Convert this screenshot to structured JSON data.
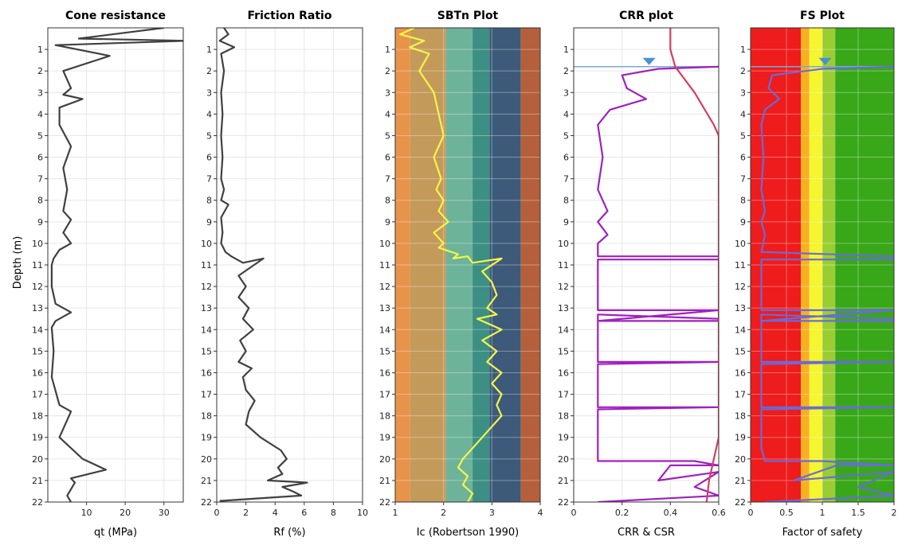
{
  "chart_data": [
    {
      "type": "line",
      "title": "Cone resistance",
      "xlabel": "qt (MPa)",
      "ylabel": "Depth (m)",
      "xlim": [
        0,
        35
      ],
      "ylim": [
        22,
        0
      ],
      "xticks": [
        10,
        20,
        30
      ],
      "yticks": [
        1,
        2,
        3,
        4,
        5,
        6,
        7,
        8,
        9,
        10,
        11,
        12,
        13,
        14,
        15,
        16,
        17,
        18,
        19,
        20,
        21,
        22
      ],
      "grid": true,
      "series": [
        {
          "color": "#404040",
          "x": [
            30,
            8,
            36,
            2,
            16,
            4,
            6,
            4,
            9,
            3,
            3,
            6,
            4,
            5,
            4,
            6,
            4,
            6,
            3,
            1.5,
            1,
            1,
            2,
            6,
            2,
            1,
            1.5,
            1,
            3,
            6,
            3,
            9,
            15,
            6,
            7,
            5,
            6
          ],
          "y": [
            0,
            0.5,
            0.6,
            0.8,
            1.3,
            2.0,
            2.8,
            3.1,
            3.3,
            3.7,
            4.5,
            5.5,
            6.5,
            7.5,
            8.5,
            8.9,
            9.5,
            10.0,
            10.3,
            10.7,
            11.0,
            12.0,
            12.8,
            13.2,
            13.6,
            13.9,
            15.0,
            16.2,
            17.5,
            17.8,
            19.0,
            20.0,
            20.5,
            20.9,
            21.1,
            21.7,
            22
          ]
        }
      ]
    },
    {
      "type": "line",
      "title": "Friction Ratio",
      "xlabel": "Rf (%)",
      "xlim": [
        0,
        10
      ],
      "ylim": [
        22,
        0
      ],
      "xticks": [
        0,
        2,
        4,
        6,
        8,
        10
      ],
      "yticks": [
        1,
        2,
        3,
        4,
        5,
        6,
        7,
        8,
        9,
        10,
        11,
        12,
        13,
        14,
        15,
        16,
        17,
        18,
        19,
        20,
        21,
        22
      ],
      "grid": true,
      "series": [
        {
          "color": "#404040",
          "x": [
            0.5,
            0.8,
            0.2,
            1.2,
            0.3,
            0.5,
            0.3,
            0.4,
            0.3,
            0.4,
            0.3,
            0.5,
            0.3,
            0.8,
            0.3,
            0.4,
            0.3,
            0.6,
            1.0,
            1.8,
            3.2,
            1.5,
            2.0,
            1.5,
            2.2,
            1.8,
            2.5,
            1.6,
            2.0,
            1.5,
            2.4,
            1.8,
            2.0,
            2.6,
            2.2,
            2.0,
            3.0,
            4.4,
            4.8,
            4.2,
            4.5,
            3.5,
            6.2,
            4.5,
            5.2,
            5.8,
            0.2
          ],
          "y": [
            0,
            0.3,
            0.6,
            0.9,
            1.2,
            2.0,
            3.0,
            4.0,
            5.0,
            6.0,
            7.0,
            7.5,
            8.0,
            8.2,
            8.8,
            9.5,
            10.0,
            10.4,
            10.6,
            10.9,
            10.7,
            11.5,
            12.0,
            12.5,
            13.0,
            13.5,
            14.0,
            14.5,
            15.0,
            15.5,
            15.8,
            16.2,
            16.8,
            17.3,
            17.8,
            18.4,
            19.0,
            19.6,
            20.0,
            20.4,
            20.7,
            21.0,
            21.1,
            21.3,
            21.5,
            21.7,
            21.95
          ]
        }
      ]
    },
    {
      "type": "line",
      "title": "SBTn Plot",
      "xlabel": "Ic (Robertson 1990)",
      "xlim": [
        1,
        4
      ],
      "ylim": [
        22,
        0
      ],
      "xticks": [
        1,
        2,
        3,
        4
      ],
      "yticks": [
        1,
        2,
        3,
        4,
        5,
        6,
        7,
        8,
        9,
        10,
        11,
        12,
        13,
        14,
        15,
        16,
        17,
        18,
        19,
        20,
        21,
        22
      ],
      "grid": true,
      "zones": [
        {
          "from": 1.0,
          "to": 1.31,
          "color": "#E8934A"
        },
        {
          "from": 1.31,
          "to": 2.05,
          "color": "#C49A5A"
        },
        {
          "from": 2.05,
          "to": 2.6,
          "color": "#6DB39A"
        },
        {
          "from": 2.6,
          "to": 2.95,
          "color": "#3D8F83"
        },
        {
          "from": 2.95,
          "to": 3.6,
          "color": "#3D5A7A"
        },
        {
          "from": 3.6,
          "to": 4.0,
          "color": "#B5603A"
        }
      ],
      "series": [
        {
          "color": "#F5F54A",
          "x": [
            1.4,
            1.1,
            1.6,
            1.3,
            1.7,
            1.5,
            1.8,
            1.9,
            2.0,
            1.8,
            1.95,
            1.85,
            2.0,
            1.9,
            2.1,
            1.8,
            2.0,
            1.9,
            2.3,
            2.2,
            2.5,
            2.6,
            3.2,
            2.8,
            3.0,
            3.1,
            2.9,
            3.1,
            2.7,
            3.2,
            2.8,
            3.1,
            2.9,
            3.2,
            3.0,
            3.2,
            3.1,
            3.2,
            3.0,
            2.8,
            2.6,
            2.4,
            2.3,
            2.5,
            2.4,
            2.6,
            2.5
          ],
          "y": [
            0,
            0.3,
            0.6,
            0.9,
            1.2,
            2.0,
            3.0,
            4.0,
            5.0,
            6.0,
            7.0,
            7.5,
            8.0,
            8.5,
            9.0,
            9.5,
            10.0,
            10.2,
            10.5,
            10.7,
            10.6,
            10.9,
            10.7,
            11.3,
            11.8,
            12.4,
            13.0,
            13.3,
            13.5,
            14.0,
            14.5,
            15.0,
            15.5,
            16.0,
            16.5,
            17.0,
            17.5,
            18.0,
            18.5,
            19.0,
            19.5,
            20.0,
            20.4,
            20.8,
            21.2,
            21.6,
            22.0
          ]
        }
      ]
    },
    {
      "type": "line",
      "title": "CRR plot",
      "xlabel": "CRR & CSR",
      "xlim": [
        0,
        0.6
      ],
      "ylim": [
        22,
        0
      ],
      "xticks": [
        0,
        0.2,
        0.4,
        0.6
      ],
      "yticks": [
        1,
        2,
        3,
        4,
        5,
        6,
        7,
        8,
        9,
        10,
        11,
        12,
        13,
        14,
        15,
        16,
        17,
        18,
        19,
        20,
        21,
        22
      ],
      "grid": true,
      "water_table_depth": 1.8,
      "series": [
        {
          "color": "#A020C0",
          "x": [
            0.6,
            0.35,
            0.2,
            0.22,
            0.3,
            0.15,
            0.1,
            0.12,
            0.1,
            0.14,
            0.1,
            0.14,
            0.1,
            0.1,
            0.6,
            0.6,
            0.1,
            0.1,
            0.6,
            0.1,
            0.6,
            0.6,
            0.1,
            0.1,
            0.6,
            0.1,
            0.1,
            0.6,
            0.1,
            0.1,
            0.1,
            0.5,
            0.6,
            0.4,
            0.35,
            0.6,
            0.5,
            0.6,
            0.1
          ],
          "y": [
            1.8,
            1.9,
            2.2,
            2.8,
            3.3,
            3.8,
            4.5,
            6.0,
            7.5,
            8.5,
            9.0,
            9.6,
            10.0,
            10.6,
            10.6,
            10.75,
            10.75,
            13.1,
            13.1,
            13.6,
            13.6,
            13.5,
            13.3,
            15.5,
            15.5,
            15.6,
            17.6,
            17.6,
            17.7,
            19.5,
            20.1,
            20.1,
            20.3,
            20.3,
            21.0,
            20.6,
            21.3,
            21.7,
            22.0
          ]
        },
        {
          "color": "#D04060",
          "x": [
            0.4,
            0.4,
            0.42,
            0.5,
            0.58,
            0.6,
            0.6,
            0.58,
            0.56,
            0.55
          ],
          "y": [
            0,
            1.0,
            1.8,
            3.0,
            4.5,
            5.0,
            19.0,
            20.0,
            21.0,
            22.0
          ]
        }
      ]
    },
    {
      "type": "line",
      "title": "FS Plot",
      "xlabel": "Factor of safety",
      "xlim": [
        0,
        2
      ],
      "ylim": [
        22,
        0
      ],
      "xticks": [
        0,
        0.5,
        1,
        1.5,
        2
      ],
      "yticks": [
        1,
        2,
        3,
        4,
        5,
        6,
        7,
        8,
        9,
        10,
        11,
        12,
        13,
        14,
        15,
        16,
        17,
        18,
        19,
        20,
        21,
        22
      ],
      "grid": true,
      "water_table_depth": 1.8,
      "zones": [
        {
          "from": 0.0,
          "to": 0.7,
          "color": "#EE1C1C"
        },
        {
          "from": 0.7,
          "to": 0.82,
          "color": "#F7B024"
        },
        {
          "from": 0.82,
          "to": 1.0,
          "color": "#F5F530"
        },
        {
          "from": 1.0,
          "to": 1.18,
          "color": "#9ACD32"
        },
        {
          "from": 1.18,
          "to": 2.0,
          "color": "#38A818"
        }
      ],
      "series": [
        {
          "color": "#6A6ADA",
          "x": [
            2.0,
            1.0,
            0.3,
            0.25,
            0.4,
            0.2,
            0.15,
            0.18,
            0.15,
            0.2,
            0.15,
            0.2,
            0.15,
            2.0,
            2.0,
            0.15,
            0.15,
            2.0,
            0.15,
            2.0,
            2.0,
            0.15,
            0.15,
            2.0,
            0.15,
            0.15,
            2.0,
            0.15,
            0.15,
            0.2,
            1.0,
            2.0,
            1.2,
            0.6,
            2.0,
            1.5,
            2.0,
            0.2
          ],
          "y": [
            1.8,
            1.9,
            2.2,
            2.8,
            3.3,
            3.8,
            4.5,
            6.0,
            7.5,
            8.5,
            9.0,
            9.6,
            10.4,
            10.6,
            10.75,
            10.75,
            13.1,
            13.1,
            13.6,
            13.6,
            13.5,
            13.3,
            15.5,
            15.5,
            15.6,
            17.6,
            17.6,
            17.7,
            19.5,
            20.1,
            20.1,
            20.3,
            20.3,
            21.0,
            20.6,
            21.3,
            21.7,
            22.0
          ]
        }
      ]
    }
  ]
}
